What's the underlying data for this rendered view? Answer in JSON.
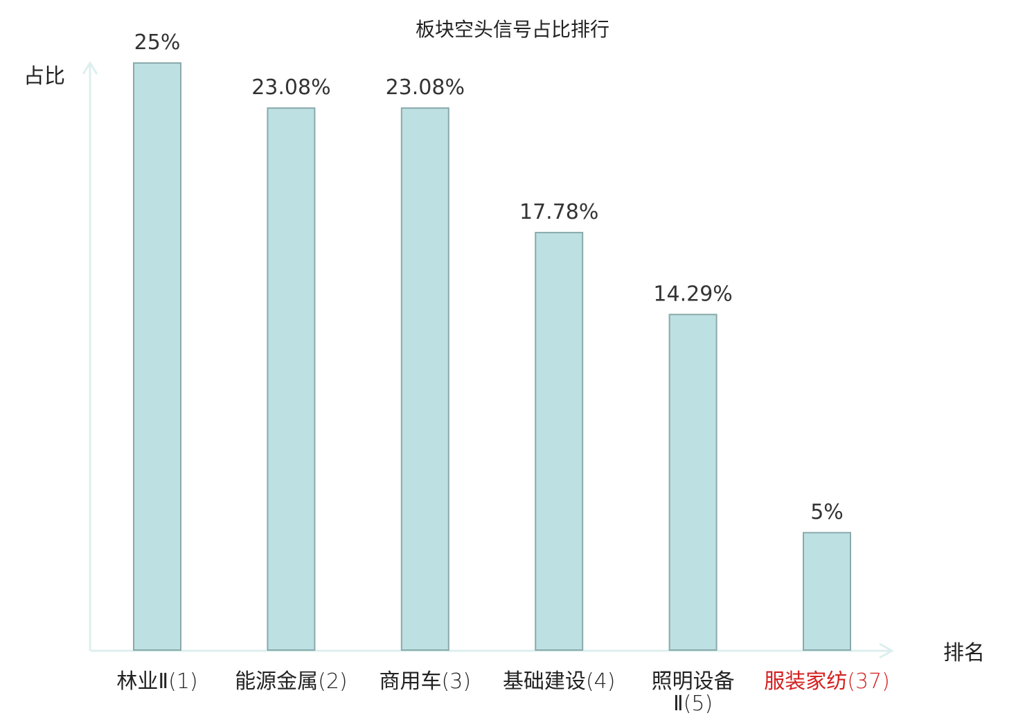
{
  "chart_data": {
    "type": "bar",
    "title": "板块空头信号占比排行",
    "ylabel": "占比",
    "xlabel": "排名",
    "categories": [
      {
        "name": "林业Ⅱ",
        "rank": "(1)",
        "highlight": false
      },
      {
        "name": "能源金属",
        "rank": "(2)",
        "highlight": false
      },
      {
        "name": "商用车",
        "rank": "(3)",
        "highlight": false
      },
      {
        "name": "基础建设",
        "rank": "(4)",
        "highlight": false
      },
      {
        "name": "照明设备Ⅱ",
        "rank": "(5)",
        "highlight": false
      },
      {
        "name": "服装家纺",
        "rank": "(37)",
        "highlight": true
      }
    ],
    "values": [
      25,
      23.08,
      23.08,
      17.78,
      14.29,
      5
    ],
    "value_labels": [
      "25%",
      "23.08%",
      "23.08%",
      "17.78%",
      "14.29%",
      "5%"
    ],
    "ylim": [
      0,
      25
    ],
    "grid": false,
    "legend": "none",
    "colors": {
      "bar_fill": "#bde0e2",
      "bar_stroke": "#8aa9ab",
      "axis": "#dcefee",
      "text": "#222222",
      "value_text": "#333333",
      "highlight_text": "#d42020"
    }
  }
}
